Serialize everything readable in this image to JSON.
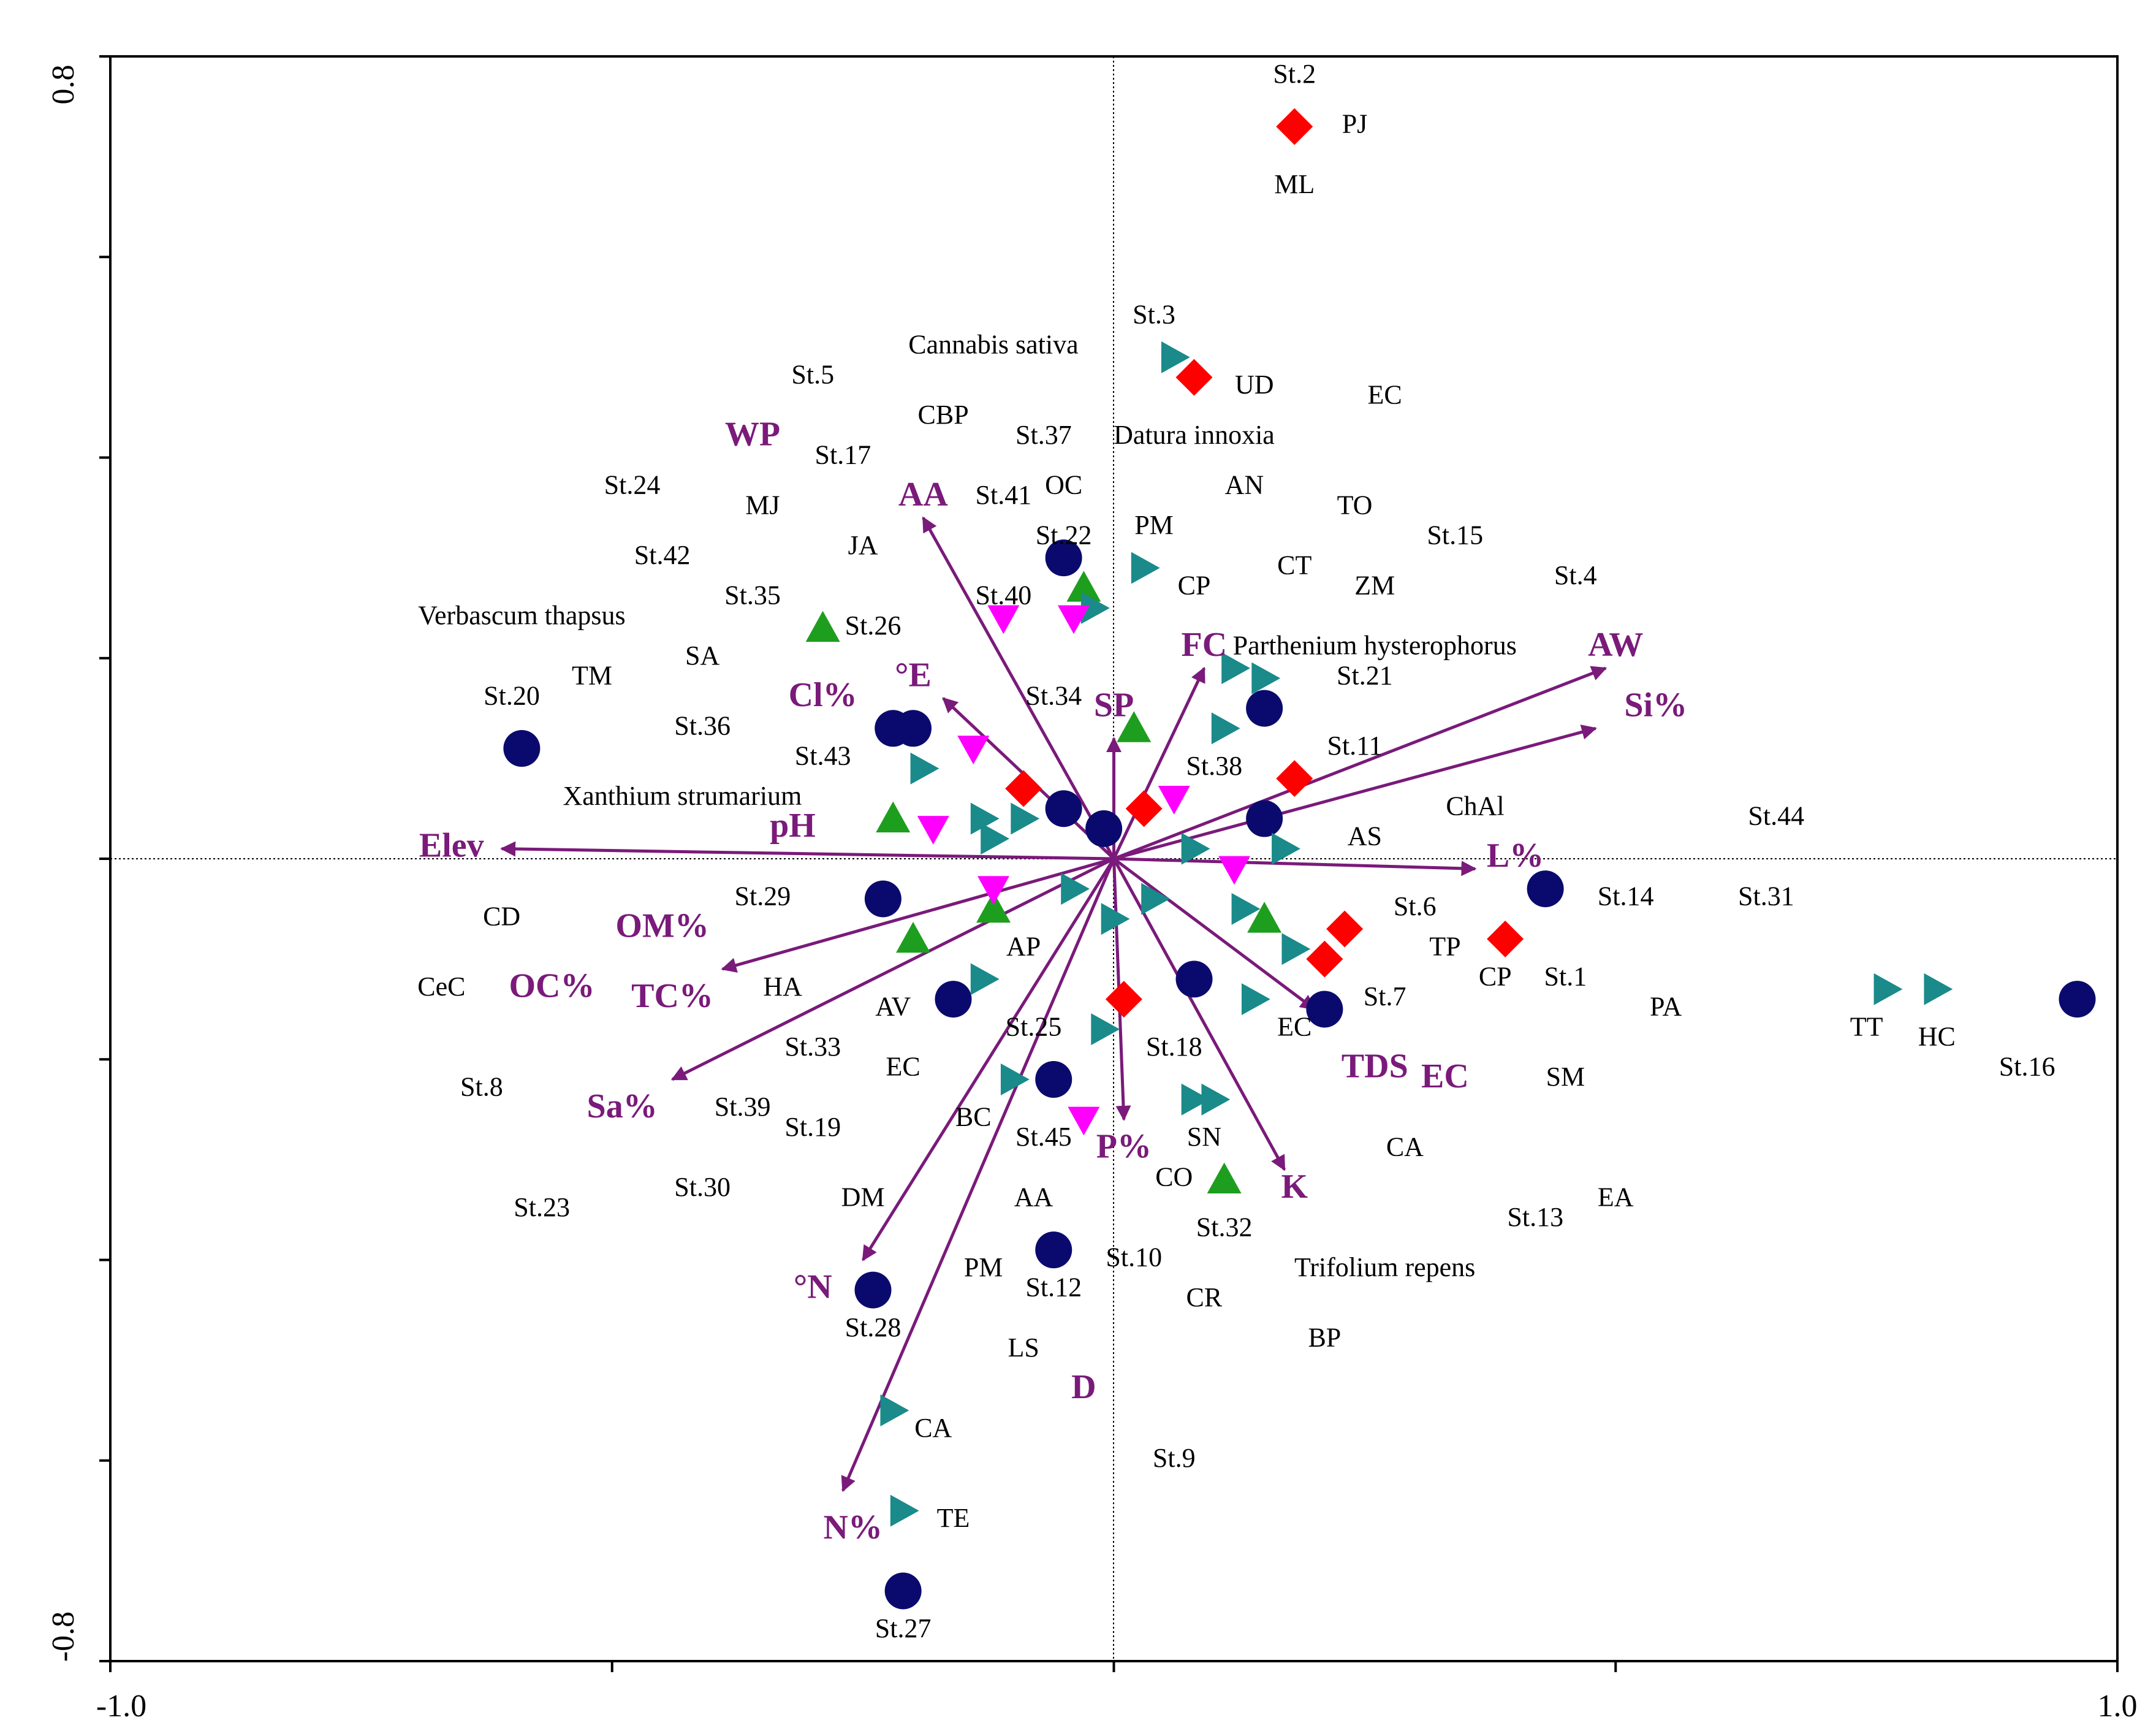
{
  "colors": {
    "station": "#0a0a6e",
    "env_var": "#7a1a7a",
    "group_diamond": "#ff0000",
    "group_triangle_up": "#1e9e1e",
    "group_triangle_right": "#1a8a8a",
    "group_triangle_down": "#ff00ff",
    "axis": "#000000"
  },
  "chart_data": {
    "type": "scatter",
    "subtype": "CCA ordination triplot",
    "title": "",
    "xlabel": "",
    "ylabel": "",
    "xlim": [
      -1.0,
      1.0
    ],
    "ylim": [
      -0.8,
      0.8
    ],
    "x_tick_labels": [
      "-1.0",
      "1.0"
    ],
    "y_tick_labels": [
      "0.8",
      "-0.8"
    ],
    "x_ticks": [
      -1.0,
      -0.5,
      0.0,
      0.5,
      1.0
    ],
    "y_ticks": [
      -0.8,
      -0.6,
      -0.4,
      -0.2,
      0.0,
      0.2,
      0.4,
      0.6,
      0.8
    ],
    "zero_lines": "dotted",
    "station_points": [
      {
        "x": -0.59,
        "y": 0.11
      },
      {
        "x": -0.05,
        "y": 0.3
      },
      {
        "x": -0.2,
        "y": 0.13
      },
      {
        "x": -0.22,
        "y": 0.13
      },
      {
        "x": -0.05,
        "y": 0.05
      },
      {
        "x": -0.01,
        "y": 0.03
      },
      {
        "x": 0.15,
        "y": 0.15
      },
      {
        "x": 0.15,
        "y": 0.04
      },
      {
        "x": -0.23,
        "y": -0.04
      },
      {
        "x": 0.43,
        "y": -0.03
      },
      {
        "x": 0.08,
        "y": -0.12
      },
      {
        "x": 0.21,
        "y": -0.15
      },
      {
        "x": -0.16,
        "y": -0.14
      },
      {
        "x": -0.06,
        "y": -0.22
      },
      {
        "x": -0.06,
        "y": -0.39
      },
      {
        "x": -0.24,
        "y": -0.43
      },
      {
        "x": -0.21,
        "y": -0.73
      },
      {
        "x": 0.96,
        "y": -0.14
      }
    ],
    "diamond_points": [
      {
        "x": 0.18,
        "y": 0.73
      },
      {
        "x": 0.08,
        "y": 0.48
      },
      {
        "x": -0.09,
        "y": 0.07
      },
      {
        "x": 0.03,
        "y": 0.05
      },
      {
        "x": 0.18,
        "y": 0.08
      },
      {
        "x": 0.23,
        "y": -0.07
      },
      {
        "x": 0.21,
        "y": -0.1
      },
      {
        "x": 0.39,
        "y": -0.08
      },
      {
        "x": 0.01,
        "y": -0.14
      }
    ],
    "triangle_up_points": [
      {
        "x": -0.29,
        "y": 0.23
      },
      {
        "x": -0.03,
        "y": 0.27
      },
      {
        "x": 0.02,
        "y": 0.13
      },
      {
        "x": -0.22,
        "y": 0.04
      },
      {
        "x": -0.12,
        "y": -0.05
      },
      {
        "x": -0.2,
        "y": -0.08
      },
      {
        "x": 0.15,
        "y": -0.06
      },
      {
        "x": 0.11,
        "y": -0.32
      }
    ],
    "triangle_right_points": [
      {
        "x": 0.06,
        "y": 0.5
      },
      {
        "x": 0.03,
        "y": 0.29
      },
      {
        "x": -0.02,
        "y": 0.25
      },
      {
        "x": 0.12,
        "y": 0.19
      },
      {
        "x": 0.15,
        "y": 0.18
      },
      {
        "x": 0.11,
        "y": 0.13
      },
      {
        "x": -0.19,
        "y": 0.09
      },
      {
        "x": -0.13,
        "y": 0.04
      },
      {
        "x": -0.09,
        "y": 0.04
      },
      {
        "x": -0.12,
        "y": 0.02
      },
      {
        "x": 0.08,
        "y": 0.01
      },
      {
        "x": 0.17,
        "y": 0.01
      },
      {
        "x": -0.04,
        "y": -0.03
      },
      {
        "x": 0.0,
        "y": -0.06
      },
      {
        "x": 0.04,
        "y": -0.04
      },
      {
        "x": 0.13,
        "y": -0.05
      },
      {
        "x": 0.18,
        "y": -0.09
      },
      {
        "x": 0.14,
        "y": -0.14
      },
      {
        "x": -0.13,
        "y": -0.12
      },
      {
        "x": -0.01,
        "y": -0.17
      },
      {
        "x": -0.1,
        "y": -0.22
      },
      {
        "x": 0.08,
        "y": -0.24
      },
      {
        "x": 0.1,
        "y": -0.24
      },
      {
        "x": -0.22,
        "y": -0.55
      },
      {
        "x": -0.21,
        "y": -0.65
      },
      {
        "x": 0.77,
        "y": -0.13
      },
      {
        "x": 0.82,
        "y": -0.13
      }
    ],
    "triangle_down_points": [
      {
        "x": -0.11,
        "y": 0.24
      },
      {
        "x": -0.04,
        "y": 0.24
      },
      {
        "x": -0.14,
        "y": 0.11
      },
      {
        "x": 0.06,
        "y": 0.06
      },
      {
        "x": -0.18,
        "y": 0.03
      },
      {
        "x": 0.12,
        "y": -0.01
      },
      {
        "x": -0.12,
        "y": -0.03
      },
      {
        "x": -0.03,
        "y": -0.26
      }
    ],
    "env_vectors": [
      {
        "name": "AA",
        "x": -0.19,
        "y": 0.34
      },
      {
        "name": "Cl%",
        "x": -0.17,
        "y": 0.16
      },
      {
        "name": "FC",
        "x": 0.09,
        "y": 0.19
      },
      {
        "name": "AW",
        "x": 0.49,
        "y": 0.19
      },
      {
        "name": "Si%",
        "x": 0.48,
        "y": 0.13
      },
      {
        "name": "SP",
        "x": 0.0,
        "y": 0.12
      },
      {
        "name": "Elev",
        "x": -0.61,
        "y": 0.01
      },
      {
        "name": "L%",
        "x": 0.36,
        "y": -0.01
      },
      {
        "name": "OM%",
        "x": -0.39,
        "y": -0.11
      },
      {
        "name": "Sa%",
        "x": -0.44,
        "y": -0.22
      },
      {
        "name": "TDS",
        "x": 0.2,
        "y": -0.15
      },
      {
        "name": "P%",
        "x": 0.01,
        "y": -0.26
      },
      {
        "name": "K",
        "x": 0.17,
        "y": -0.31
      },
      {
        "name": "°N",
        "x": -0.25,
        "y": -0.4
      },
      {
        "name": "N%",
        "x": -0.27,
        "y": -0.63
      }
    ],
    "text_labels": [
      {
        "text": "St.2",
        "x": 0.18,
        "y": 0.78,
        "kind": "station"
      },
      {
        "text": "PJ",
        "x": 0.24,
        "y": 0.73,
        "kind": "species"
      },
      {
        "text": "ML",
        "x": 0.18,
        "y": 0.67,
        "kind": "species"
      },
      {
        "text": "St.3",
        "x": 0.04,
        "y": 0.54,
        "kind": "station"
      },
      {
        "text": "Cannabis sativa",
        "x": -0.12,
        "y": 0.51,
        "kind": "species"
      },
      {
        "text": "UD",
        "x": 0.14,
        "y": 0.47,
        "kind": "species"
      },
      {
        "text": "EC",
        "x": 0.27,
        "y": 0.46,
        "kind": "species"
      },
      {
        "text": "St.5",
        "x": -0.3,
        "y": 0.48,
        "kind": "station"
      },
      {
        "text": "CBP",
        "x": -0.17,
        "y": 0.44,
        "kind": "species"
      },
      {
        "text": "St.37",
        "x": -0.07,
        "y": 0.42,
        "kind": "station"
      },
      {
        "text": "Datura innoxia",
        "x": 0.08,
        "y": 0.42,
        "kind": "species"
      },
      {
        "text": "WP",
        "x": -0.36,
        "y": 0.42,
        "kind": "envvar"
      },
      {
        "text": "St.17",
        "x": -0.27,
        "y": 0.4,
        "kind": "station"
      },
      {
        "text": "St.24",
        "x": -0.48,
        "y": 0.37,
        "kind": "station"
      },
      {
        "text": "MJ",
        "x": -0.35,
        "y": 0.35,
        "kind": "species"
      },
      {
        "text": "AA",
        "x": -0.19,
        "y": 0.36,
        "kind": "envvar"
      },
      {
        "text": "St.41",
        "x": -0.11,
        "y": 0.36,
        "kind": "station"
      },
      {
        "text": "OC",
        "x": -0.05,
        "y": 0.37,
        "kind": "species"
      },
      {
        "text": "AN",
        "x": 0.13,
        "y": 0.37,
        "kind": "species"
      },
      {
        "text": "TO",
        "x": 0.24,
        "y": 0.35,
        "kind": "species"
      },
      {
        "text": "St.22",
        "x": -0.05,
        "y": 0.32,
        "kind": "station"
      },
      {
        "text": "PM",
        "x": 0.04,
        "y": 0.33,
        "kind": "species"
      },
      {
        "text": "St.15",
        "x": 0.34,
        "y": 0.32,
        "kind": "station"
      },
      {
        "text": "St.42",
        "x": -0.45,
        "y": 0.3,
        "kind": "station"
      },
      {
        "text": "JA",
        "x": -0.25,
        "y": 0.31,
        "kind": "species"
      },
      {
        "text": "CT",
        "x": 0.18,
        "y": 0.29,
        "kind": "species"
      },
      {
        "text": "St.4",
        "x": 0.46,
        "y": 0.28,
        "kind": "station"
      },
      {
        "text": "St.35",
        "x": -0.36,
        "y": 0.26,
        "kind": "station"
      },
      {
        "text": "St.40",
        "x": -0.11,
        "y": 0.26,
        "kind": "station"
      },
      {
        "text": "CP",
        "x": 0.08,
        "y": 0.27,
        "kind": "species"
      },
      {
        "text": "ZM",
        "x": 0.26,
        "y": 0.27,
        "kind": "species"
      },
      {
        "text": "Verbascum thapsus",
        "x": -0.59,
        "y": 0.24,
        "kind": "species"
      },
      {
        "text": "St.26",
        "x": -0.24,
        "y": 0.23,
        "kind": "station"
      },
      {
        "text": "FC",
        "x": 0.09,
        "y": 0.21,
        "kind": "envvar"
      },
      {
        "text": "Parthenium hysterophorus",
        "x": 0.26,
        "y": 0.21,
        "kind": "species"
      },
      {
        "text": "AW",
        "x": 0.5,
        "y": 0.21,
        "kind": "envvar"
      },
      {
        "text": "SA",
        "x": -0.41,
        "y": 0.2,
        "kind": "species"
      },
      {
        "text": "°E",
        "x": -0.2,
        "y": 0.18,
        "kind": "envvar"
      },
      {
        "text": "TM",
        "x": -0.52,
        "y": 0.18,
        "kind": "species"
      },
      {
        "text": "St.21",
        "x": 0.25,
        "y": 0.18,
        "kind": "station"
      },
      {
        "text": "St.20",
        "x": -0.6,
        "y": 0.16,
        "kind": "station"
      },
      {
        "text": "Cl%",
        "x": -0.29,
        "y": 0.16,
        "kind": "envvar"
      },
      {
        "text": "St.34",
        "x": -0.06,
        "y": 0.16,
        "kind": "station"
      },
      {
        "text": "SP",
        "x": 0.0,
        "y": 0.15,
        "kind": "envvar"
      },
      {
        "text": "Si%",
        "x": 0.54,
        "y": 0.15,
        "kind": "envvar"
      },
      {
        "text": "St.36",
        "x": -0.41,
        "y": 0.13,
        "kind": "station"
      },
      {
        "text": "St.11",
        "x": 0.24,
        "y": 0.11,
        "kind": "station"
      },
      {
        "text": "St.43",
        "x": -0.29,
        "y": 0.1,
        "kind": "station"
      },
      {
        "text": "St.38",
        "x": 0.1,
        "y": 0.09,
        "kind": "station"
      },
      {
        "text": "Xanthium strumarium",
        "x": -0.43,
        "y": 0.06,
        "kind": "species"
      },
      {
        "text": "ChAl",
        "x": 0.36,
        "y": 0.05,
        "kind": "species"
      },
      {
        "text": "St.44",
        "x": 0.66,
        "y": 0.04,
        "kind": "station"
      },
      {
        "text": "pH",
        "x": -0.32,
        "y": 0.03,
        "kind": "envvar"
      },
      {
        "text": "AS",
        "x": 0.25,
        "y": 0.02,
        "kind": "species"
      },
      {
        "text": "Elev",
        "x": -0.66,
        "y": 0.01,
        "kind": "envvar"
      },
      {
        "text": "L%",
        "x": 0.4,
        "y": 0.0,
        "kind": "envvar"
      },
      {
        "text": "St.29",
        "x": -0.35,
        "y": -0.04,
        "kind": "station"
      },
      {
        "text": "St.14",
        "x": 0.51,
        "y": -0.04,
        "kind": "station"
      },
      {
        "text": "St.31",
        "x": 0.65,
        "y": -0.04,
        "kind": "station"
      },
      {
        "text": "CD",
        "x": -0.61,
        "y": -0.06,
        "kind": "species"
      },
      {
        "text": "St.6",
        "x": 0.3,
        "y": -0.05,
        "kind": "station"
      },
      {
        "text": "OM%",
        "x": -0.45,
        "y": -0.07,
        "kind": "envvar"
      },
      {
        "text": "TP",
        "x": 0.33,
        "y": -0.09,
        "kind": "species"
      },
      {
        "text": "AP",
        "x": -0.09,
        "y": -0.09,
        "kind": "species"
      },
      {
        "text": "CeC",
        "x": -0.67,
        "y": -0.13,
        "kind": "species"
      },
      {
        "text": "HA",
        "x": -0.33,
        "y": -0.13,
        "kind": "species"
      },
      {
        "text": "OC%",
        "x": -0.56,
        "y": -0.13,
        "kind": "envvar"
      },
      {
        "text": "TC%",
        "x": -0.44,
        "y": -0.14,
        "kind": "envvar"
      },
      {
        "text": "CP",
        "x": 0.38,
        "y": -0.12,
        "kind": "species"
      },
      {
        "text": "St.1",
        "x": 0.45,
        "y": -0.12,
        "kind": "station"
      },
      {
        "text": "St.7",
        "x": 0.27,
        "y": -0.14,
        "kind": "station"
      },
      {
        "text": "PA",
        "x": 0.55,
        "y": -0.15,
        "kind": "species"
      },
      {
        "text": "TT",
        "x": 0.75,
        "y": -0.17,
        "kind": "species"
      },
      {
        "text": "HC",
        "x": 0.82,
        "y": -0.18,
        "kind": "species"
      },
      {
        "text": "AV",
        "x": -0.22,
        "y": -0.15,
        "kind": "species"
      },
      {
        "text": "St.25",
        "x": -0.08,
        "y": -0.17,
        "kind": "station"
      },
      {
        "text": "EC",
        "x": 0.18,
        "y": -0.17,
        "kind": "species"
      },
      {
        "text": "St.33",
        "x": -0.3,
        "y": -0.19,
        "kind": "station"
      },
      {
        "text": "St.18",
        "x": 0.06,
        "y": -0.19,
        "kind": "station"
      },
      {
        "text": "TDS",
        "x": 0.26,
        "y": -0.21,
        "kind": "envvar"
      },
      {
        "text": "EC",
        "x": 0.33,
        "y": -0.22,
        "kind": "envvar"
      },
      {
        "text": "St.16",
        "x": 0.91,
        "y": -0.21,
        "kind": "station"
      },
      {
        "text": "EC",
        "x": -0.21,
        "y": -0.21,
        "kind": "species"
      },
      {
        "text": "SM",
        "x": 0.45,
        "y": -0.22,
        "kind": "species"
      },
      {
        "text": "St.8",
        "x": -0.63,
        "y": -0.23,
        "kind": "station"
      },
      {
        "text": "Sa%",
        "x": -0.49,
        "y": -0.25,
        "kind": "envvar"
      },
      {
        "text": "St.39",
        "x": -0.37,
        "y": -0.25,
        "kind": "station"
      },
      {
        "text": "BC",
        "x": -0.14,
        "y": -0.26,
        "kind": "species"
      },
      {
        "text": "St.19",
        "x": -0.3,
        "y": -0.27,
        "kind": "station"
      },
      {
        "text": "St.45",
        "x": -0.07,
        "y": -0.28,
        "kind": "station"
      },
      {
        "text": "SN",
        "x": 0.09,
        "y": -0.28,
        "kind": "species"
      },
      {
        "text": "P%",
        "x": 0.01,
        "y": -0.29,
        "kind": "envvar"
      },
      {
        "text": "CA",
        "x": 0.29,
        "y": -0.29,
        "kind": "species"
      },
      {
        "text": "CO",
        "x": 0.06,
        "y": -0.32,
        "kind": "species"
      },
      {
        "text": "K",
        "x": 0.18,
        "y": -0.33,
        "kind": "envvar"
      },
      {
        "text": "EA",
        "x": 0.5,
        "y": -0.34,
        "kind": "species"
      },
      {
        "text": "St.30",
        "x": -0.41,
        "y": -0.33,
        "kind": "station"
      },
      {
        "text": "AA",
        "x": -0.08,
        "y": -0.34,
        "kind": "species"
      },
      {
        "text": "DM",
        "x": -0.25,
        "y": -0.34,
        "kind": "species"
      },
      {
        "text": "St.32",
        "x": 0.11,
        "y": -0.37,
        "kind": "station"
      },
      {
        "text": "St.23",
        "x": -0.57,
        "y": -0.35,
        "kind": "station"
      },
      {
        "text": "St.13",
        "x": 0.42,
        "y": -0.36,
        "kind": "station"
      },
      {
        "text": "St.10",
        "x": 0.02,
        "y": -0.4,
        "kind": "station"
      },
      {
        "text": "Trifolium repens",
        "x": 0.27,
        "y": -0.41,
        "kind": "species"
      },
      {
        "text": "PM",
        "x": -0.13,
        "y": -0.41,
        "kind": "species"
      },
      {
        "text": "St.12",
        "x": -0.06,
        "y": -0.43,
        "kind": "station"
      },
      {
        "text": "°N",
        "x": -0.3,
        "y": -0.43,
        "kind": "envvar"
      },
      {
        "text": "CR",
        "x": 0.09,
        "y": -0.44,
        "kind": "species"
      },
      {
        "text": "St.28",
        "x": -0.24,
        "y": -0.47,
        "kind": "station"
      },
      {
        "text": "BP",
        "x": 0.21,
        "y": -0.48,
        "kind": "species"
      },
      {
        "text": "LS",
        "x": -0.09,
        "y": -0.49,
        "kind": "species"
      },
      {
        "text": "D",
        "x": -0.03,
        "y": -0.53,
        "kind": "envvar"
      },
      {
        "text": "CA",
        "x": -0.18,
        "y": -0.57,
        "kind": "species"
      },
      {
        "text": "St.9",
        "x": 0.06,
        "y": -0.6,
        "kind": "station"
      },
      {
        "text": "TE",
        "x": -0.16,
        "y": -0.66,
        "kind": "species"
      },
      {
        "text": "N%",
        "x": -0.26,
        "y": -0.67,
        "kind": "envvar"
      },
      {
        "text": "St.27",
        "x": -0.21,
        "y": -0.77,
        "kind": "station"
      }
    ]
  }
}
